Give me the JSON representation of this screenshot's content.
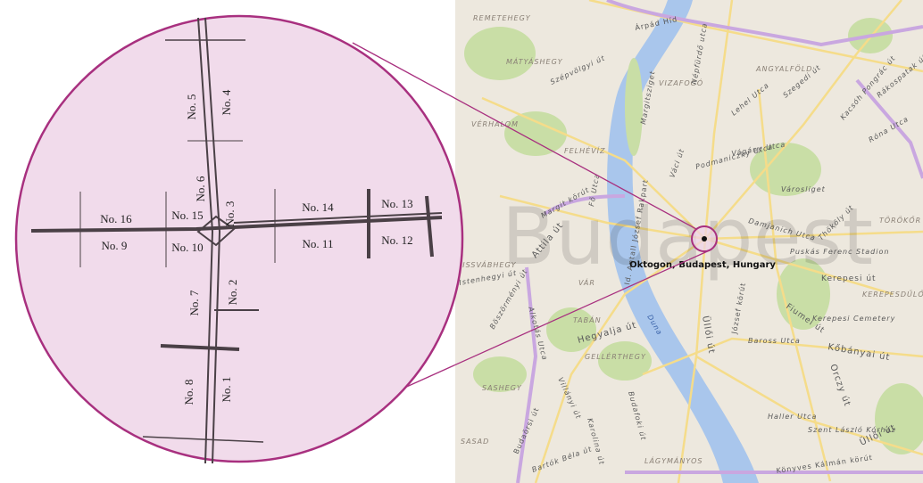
{
  "map": {
    "watermark": "Budapest",
    "marker_label": "Oktogon, Budapest, Hungary",
    "labels": [
      "REMETEHEGY",
      "Árpád Híd",
      "MÁTYÁSHEGY",
      "Szépvölgyi út",
      "Margitsziget",
      "VIZAFOGÓ",
      "ANGYALFÖLD",
      "Népfürdő utca",
      "Szegedi út",
      "Lehel Utca",
      "Kacsóh Pongrác út",
      "Rákospatak út",
      "VÉRHALOM",
      "FELHÉVÍZ",
      "Vágány Utca",
      "Róna Utca",
      "Városliget",
      "Váci út",
      "Margit körút",
      "Podmaniczky Utca",
      "Damjanich Utca",
      "Thököly út",
      "TÖRÖKŐR",
      "Puskás Ferenc Stadion",
      "Kerepesi út",
      "KEREPESDŰLŐ",
      "KISSVÁBHEGY",
      "Attila út",
      "Fő Utca",
      "Id. Antall József Rakpart",
      "VÁR",
      "Istenhegyi út",
      "Böszörményi út",
      "Alkotás Utca",
      "TABÁN",
      "Hegyalja út",
      "GELLÉRTHEGY",
      "Duna",
      "Üllői út",
      "József körút",
      "Baross Utca",
      "Fiumei út",
      "Kerepesi Cemetery",
      "Kőbányai út",
      "Orczy út",
      "SASHEGY",
      "Villányi út",
      "Karolina út",
      "Budaörsi út",
      "SASAD",
      "Bartók Béla út",
      "Budafoki út",
      "LÁGYMÁNYOS",
      "Haller Utca",
      "Szent László Kórház",
      "Könyves Kálmán körút",
      "Üllői út"
    ]
  },
  "inset": {
    "labels": [
      "No. 1",
      "No. 2",
      "No. 3",
      "No. 4",
      "No. 5",
      "No. 6",
      "No. 7",
      "No. 8",
      "No. 9",
      "No. 10",
      "No. 11",
      "No. 12",
      "No. 13",
      "No. 14",
      "No. 15",
      "No. 16"
    ]
  }
}
